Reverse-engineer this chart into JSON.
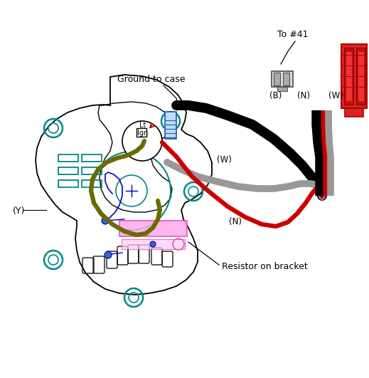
{
  "bg_color": "#ffffff",
  "labels": {
    "to41": "To #41",
    "ground": "Ground to case",
    "resistor": "Resistor on bracket",
    "Y": "(Y)",
    "B": "(B)",
    "N_top": "(N)",
    "W_top": "(W)",
    "W_mid": "(W)",
    "N_bot": "(N)",
    "Lt": "Lt",
    "Ign": "Ign"
  },
  "colors": {
    "body_outline": "#000000",
    "wire_black": "#000000",
    "wire_red": "#cc0000",
    "wire_gray": "#999999",
    "wire_olive": "#6b6b00",
    "teal": "#008888",
    "pink": "#ff88dd",
    "blue_detail": "#0000cc",
    "blue_light": "#5599cc"
  }
}
